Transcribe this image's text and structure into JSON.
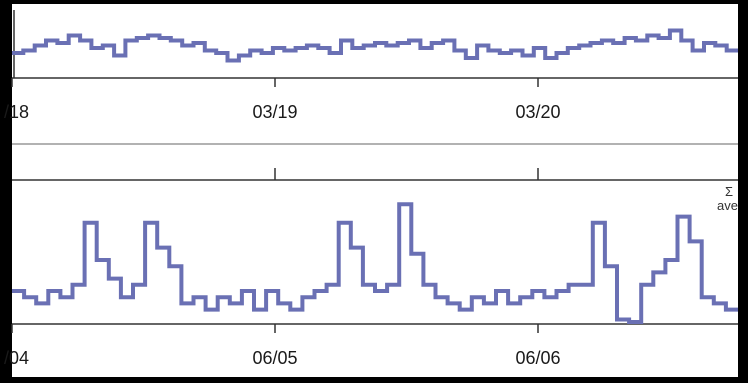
{
  "colors": {
    "frame": "#000000",
    "panel_background": "#ffffff",
    "line": "#6a70b4",
    "axis": "#333333",
    "divider": "#999999",
    "text": "#1a1a1a"
  },
  "chart_data": [
    {
      "type": "line",
      "step": true,
      "title": "",
      "xlabel": "",
      "ylabel": "",
      "x_tick_labels": [
        "/18",
        "03/19",
        "03/20"
      ],
      "x_range": [
        "03/18 ~14:00",
        "03/21 ~00:00"
      ],
      "grid": false,
      "legend": "none",
      "y_range": [
        0,
        1
      ],
      "series": [
        {
          "y": [
            0.3,
            0.35,
            0.45,
            0.55,
            0.5,
            0.65,
            0.55,
            0.4,
            0.45,
            0.25,
            0.55,
            0.6,
            0.65,
            0.6,
            0.55,
            0.45,
            0.5,
            0.35,
            0.3,
            0.15,
            0.25,
            0.35,
            0.3,
            0.4,
            0.35,
            0.4,
            0.45,
            0.4,
            0.3,
            0.55,
            0.4,
            0.45,
            0.5,
            0.45,
            0.5,
            0.55,
            0.4,
            0.5,
            0.55,
            0.35,
            0.2,
            0.45,
            0.35,
            0.3,
            0.35,
            0.25,
            0.4,
            0.2,
            0.3,
            0.4,
            0.45,
            0.5,
            0.55,
            0.5,
            0.6,
            0.55,
            0.65,
            0.6,
            0.75,
            0.55,
            0.35,
            0.5,
            0.45,
            0.35
          ]
        }
      ]
    },
    {
      "type": "line",
      "step": true,
      "title": "",
      "xlabel": "",
      "ylabel": "",
      "x_tick_labels": [
        "/04",
        "06/05",
        "06/06"
      ],
      "x_range": [
        "06/04 ~14:00",
        "06/07 ~00:00"
      ],
      "grid": false,
      "legend": "none",
      "corner_labels": [
        "Σ",
        "ave"
      ],
      "y_range": [
        0,
        1
      ],
      "series": [
        {
          "y": [
            0.25,
            0.2,
            0.15,
            0.25,
            0.2,
            0.3,
            0.8,
            0.5,
            0.35,
            0.2,
            0.3,
            0.8,
            0.6,
            0.45,
            0.15,
            0.2,
            0.1,
            0.2,
            0.15,
            0.25,
            0.1,
            0.25,
            0.15,
            0.1,
            0.2,
            0.25,
            0.3,
            0.8,
            0.6,
            0.3,
            0.25,
            0.3,
            0.95,
            0.55,
            0.3,
            0.2,
            0.15,
            0.1,
            0.2,
            0.15,
            0.25,
            0.15,
            0.2,
            0.25,
            0.2,
            0.25,
            0.3,
            0.3,
            0.8,
            0.45,
            0.02,
            0.0,
            0.3,
            0.4,
            0.5,
            0.85,
            0.65,
            0.2,
            0.15,
            0.1
          ]
        }
      ]
    }
  ]
}
